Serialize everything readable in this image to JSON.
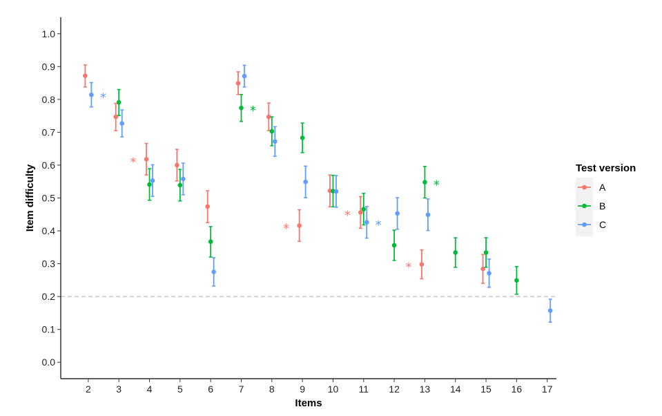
{
  "chart_data": {
    "type": "scatter",
    "xlabel": "Items",
    "ylabel": "Item difficulty",
    "ylim": [
      -0.05,
      1.05
    ],
    "yticks": [
      "0.0",
      "0.1",
      "0.2",
      "0.3",
      "0.4",
      "0.5",
      "0.6",
      "0.7",
      "0.8",
      "0.9",
      "1.0"
    ],
    "categories": [
      "2",
      "3",
      "4",
      "5",
      "6",
      "7",
      "8",
      "9",
      "10",
      "11",
      "12",
      "13",
      "14",
      "15",
      "16",
      "17"
    ],
    "reference_line": {
      "y": 0.2,
      "style": "dashed"
    },
    "legend": {
      "title": "Test version",
      "placement": "right"
    },
    "series": [
      {
        "name": "A",
        "color": "#F8766D",
        "points": [
          {
            "item": "2",
            "y": 0.872,
            "lo": 0.838,
            "hi": 0.905
          },
          {
            "item": "3",
            "y": 0.747,
            "lo": 0.705,
            "hi": 0.788
          },
          {
            "item": "4",
            "y": 0.618,
            "lo": 0.57,
            "hi": 0.666,
            "star": true
          },
          {
            "item": "5",
            "y": 0.6,
            "lo": 0.552,
            "hi": 0.648
          },
          {
            "item": "6",
            "y": 0.474,
            "lo": 0.425,
            "hi": 0.522
          },
          {
            "item": "7",
            "y": 0.849,
            "lo": 0.815,
            "hi": 0.884
          },
          {
            "item": "8",
            "y": 0.747,
            "lo": 0.705,
            "hi": 0.789
          },
          {
            "item": "9",
            "y": 0.416,
            "lo": 0.368,
            "hi": 0.464,
            "star": true
          },
          {
            "item": "10",
            "y": 0.522,
            "lo": 0.473,
            "hi": 0.57
          },
          {
            "item": "11",
            "y": 0.456,
            "lo": 0.408,
            "hi": 0.504,
            "star": true
          },
          {
            "item": "13",
            "y": 0.298,
            "lo": 0.254,
            "hi": 0.342,
            "star": true
          },
          {
            "item": "15",
            "y": 0.284,
            "lo": 0.24,
            "hi": 0.328
          }
        ]
      },
      {
        "name": "B",
        "color": "#00BA38",
        "points": [
          {
            "item": "3",
            "y": 0.791,
            "lo": 0.751,
            "hi": 0.83
          },
          {
            "item": "4",
            "y": 0.541,
            "lo": 0.493,
            "hi": 0.589
          },
          {
            "item": "5",
            "y": 0.539,
            "lo": 0.491,
            "hi": 0.587
          },
          {
            "item": "6",
            "y": 0.367,
            "lo": 0.32,
            "hi": 0.413
          },
          {
            "item": "7",
            "y": 0.774,
            "lo": 0.733,
            "hi": 0.815,
            "star": true
          },
          {
            "item": "8",
            "y": 0.703,
            "lo": 0.659,
            "hi": 0.747
          },
          {
            "item": "9",
            "y": 0.683,
            "lo": 0.638,
            "hi": 0.728
          },
          {
            "item": "10",
            "y": 0.521,
            "lo": 0.473,
            "hi": 0.569
          },
          {
            "item": "11",
            "y": 0.466,
            "lo": 0.418,
            "hi": 0.514
          },
          {
            "item": "12",
            "y": 0.356,
            "lo": 0.31,
            "hi": 0.402
          },
          {
            "item": "13",
            "y": 0.548,
            "lo": 0.5,
            "hi": 0.596,
            "star": true
          },
          {
            "item": "14",
            "y": 0.334,
            "lo": 0.289,
            "hi": 0.379
          },
          {
            "item": "15",
            "y": 0.334,
            "lo": 0.289,
            "hi": 0.379
          },
          {
            "item": "16",
            "y": 0.249,
            "lo": 0.207,
            "hi": 0.291
          }
        ]
      },
      {
        "name": "C",
        "color": "#619CFF",
        "points": [
          {
            "item": "2",
            "y": 0.814,
            "lo": 0.777,
            "hi": 0.851,
            "star": true
          },
          {
            "item": "3",
            "y": 0.727,
            "lo": 0.686,
            "hi": 0.768
          },
          {
            "item": "4",
            "y": 0.553,
            "lo": 0.505,
            "hi": 0.601
          },
          {
            "item": "5",
            "y": 0.558,
            "lo": 0.51,
            "hi": 0.606
          },
          {
            "item": "6",
            "y": 0.275,
            "lo": 0.232,
            "hi": 0.318
          },
          {
            "item": "7",
            "y": 0.871,
            "lo": 0.838,
            "hi": 0.904
          },
          {
            "item": "8",
            "y": 0.672,
            "lo": 0.627,
            "hi": 0.717
          },
          {
            "item": "9",
            "y": 0.549,
            "lo": 0.501,
            "hi": 0.597
          },
          {
            "item": "10",
            "y": 0.52,
            "lo": 0.472,
            "hi": 0.568
          },
          {
            "item": "11",
            "y": 0.426,
            "lo": 0.378,
            "hi": 0.474,
            "star": true
          },
          {
            "item": "12",
            "y": 0.453,
            "lo": 0.405,
            "hi": 0.501
          },
          {
            "item": "13",
            "y": 0.449,
            "lo": 0.401,
            "hi": 0.497
          },
          {
            "item": "15",
            "y": 0.271,
            "lo": 0.228,
            "hi": 0.314
          },
          {
            "item": "17",
            "y": 0.157,
            "lo": 0.122,
            "hi": 0.192
          }
        ]
      }
    ]
  }
}
